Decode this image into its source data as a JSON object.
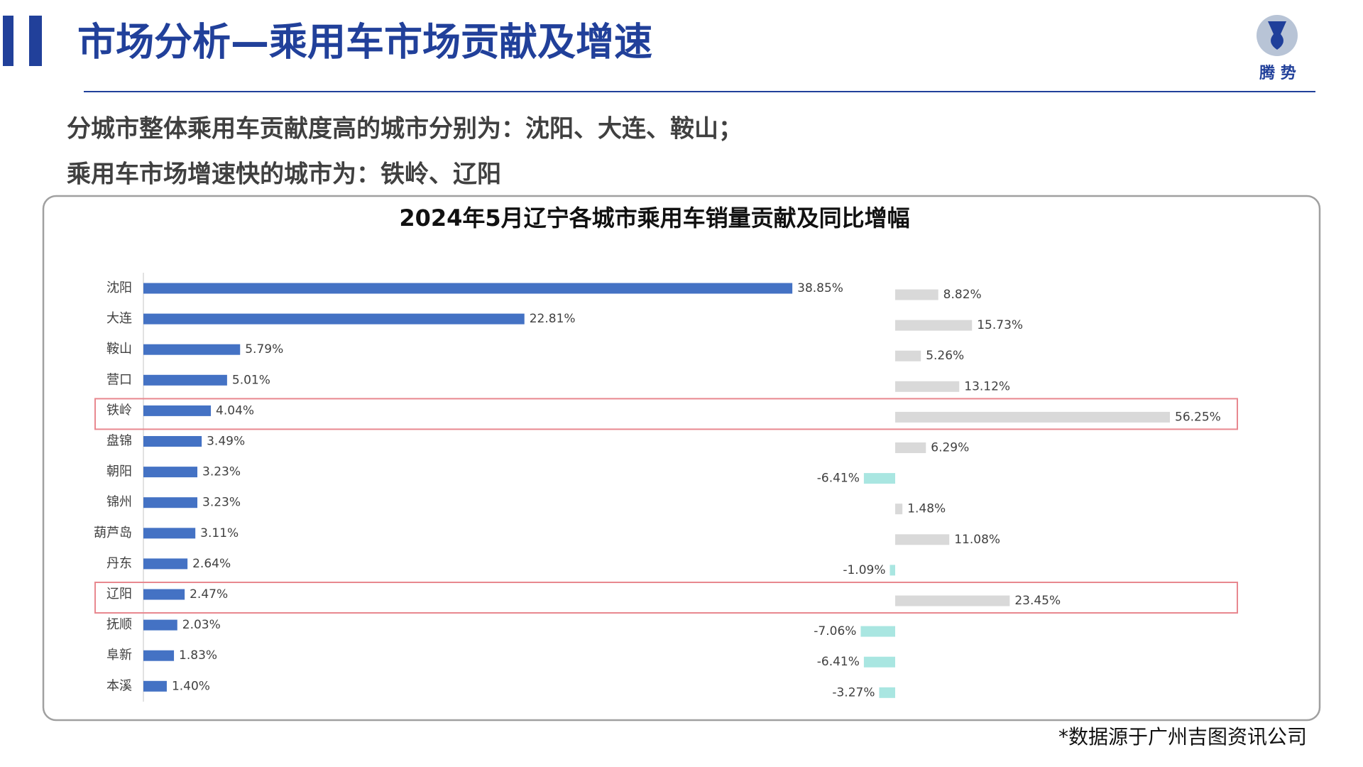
{
  "header": {
    "title": "市场分析—乘用车市场贡献及增速",
    "logo_text": "腾 势"
  },
  "bullets": [
    "分城市整体乘用车贡献度高的城市分别为：沈阳、大连、鞍山；",
    "乘用车市场增速快的城市为：铁岭、辽阳"
  ],
  "chart_data": {
    "type": "bar",
    "orientation": "horizontal",
    "title": "2024年5月辽宁各城市乘用车销量贡献及同比增幅",
    "categories": [
      "沈阳",
      "大连",
      "鞍山",
      "营口",
      "铁岭",
      "盘锦",
      "朝阳",
      "锦州",
      "葫芦岛",
      "丹东",
      "辽阳",
      "抚顺",
      "阜新",
      "本溪"
    ],
    "series": [
      {
        "color": "#4472c4",
        "values": [
          38.85,
          22.81,
          5.79,
          5.01,
          4.04,
          3.49,
          3.23,
          3.23,
          3.11,
          2.64,
          2.47,
          2.03,
          1.83,
          1.4
        ],
        "value_labels": [
          "38.85%",
          "22.81%",
          "5.79%",
          "5.01%",
          "4.04%",
          "3.49%",
          "3.23%",
          "3.23%",
          "3.11%",
          "2.64%",
          "2.47%",
          "2.03%",
          "1.83%",
          "1.40%"
        ]
      },
      {
        "color": "#d9d9d9",
        "negative_color": "#a9e6e1",
        "values": [
          8.82,
          15.73,
          5.26,
          13.12,
          56.25,
          6.29,
          -6.41,
          1.48,
          11.08,
          -1.09,
          23.45,
          -7.06,
          -6.41,
          -3.27
        ],
        "value_labels": [
          "8.82%",
          "15.73%",
          "5.26%",
          "13.12%",
          "56.25%",
          "6.29%",
          "-6.41%",
          "1.48%",
          "11.08%",
          "-1.09%",
          "23.45%",
          "-7.06%",
          "-6.41%",
          "-3.27%"
        ]
      }
    ],
    "highlight": [
      4,
      10
    ],
    "highlight_color": "#e8888f"
  },
  "source": "*数据源于广州吉图资讯公司"
}
